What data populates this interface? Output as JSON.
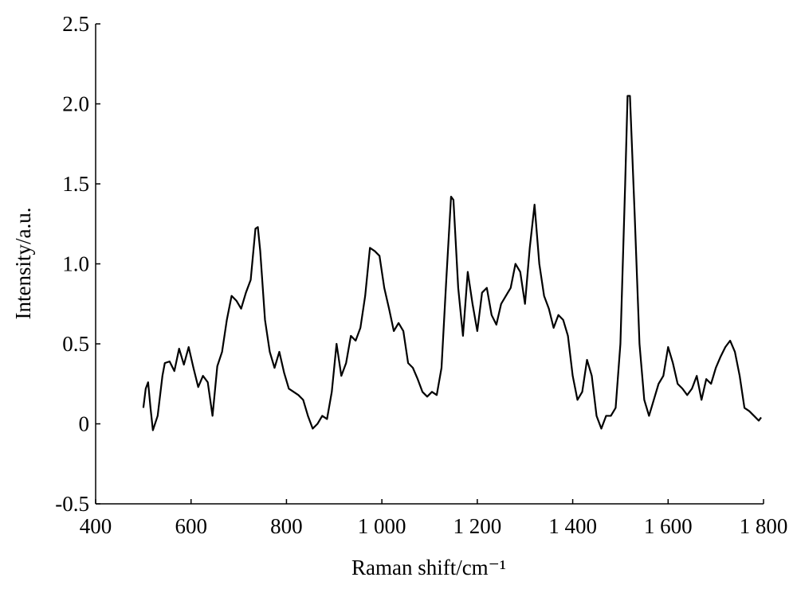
{
  "chart_data": {
    "type": "line",
    "xlabel": "Raman shift/cm⁻¹",
    "ylabel": "Intensity/a.u.",
    "xlim": [
      400,
      1800
    ],
    "ylim": [
      -0.5,
      2.5
    ],
    "xticks": [
      400,
      600,
      800,
      {
        "value": 1000,
        "label": "1 000"
      },
      {
        "value": 1200,
        "label": "1 200"
      },
      {
        "value": 1400,
        "label": "1 400"
      },
      {
        "value": 1600,
        "label": "1 600"
      },
      {
        "value": 1800,
        "label": "1 800"
      }
    ],
    "yticks": [
      -0.5,
      0,
      0.5,
      {
        "value": 1,
        "label": "1.0"
      },
      1.5,
      {
        "value": 2,
        "label": "2.0"
      },
      2.5
    ],
    "grid": false,
    "series": [
      {
        "color": "#000000",
        "x": [
          500,
          505,
          510,
          515,
          520,
          530,
          540,
          545,
          555,
          565,
          575,
          585,
          595,
          605,
          615,
          625,
          635,
          645,
          655,
          665,
          675,
          685,
          695,
          705,
          715,
          725,
          735,
          740,
          745,
          755,
          765,
          775,
          785,
          795,
          805,
          815,
          825,
          835,
          845,
          855,
          865,
          875,
          885,
          895,
          905,
          915,
          925,
          935,
          945,
          955,
          965,
          975,
          985,
          995,
          1005,
          1015,
          1025,
          1035,
          1045,
          1055,
          1065,
          1075,
          1085,
          1095,
          1105,
          1115,
          1125,
          1135,
          1145,
          1150,
          1160,
          1170,
          1180,
          1190,
          1200,
          1210,
          1220,
          1230,
          1240,
          1250,
          1260,
          1270,
          1280,
          1290,
          1300,
          1310,
          1320,
          1330,
          1340,
          1350,
          1360,
          1370,
          1380,
          1390,
          1400,
          1410,
          1420,
          1430,
          1440,
          1450,
          1460,
          1470,
          1480,
          1490,
          1500,
          1510,
          1515,
          1520,
          1530,
          1540,
          1550,
          1560,
          1570,
          1580,
          1590,
          1600,
          1610,
          1620,
          1630,
          1640,
          1650,
          1660,
          1670,
          1680,
          1690,
          1700,
          1710,
          1720,
          1730,
          1740,
          1750,
          1760,
          1770,
          1780,
          1790,
          1795
        ],
        "values": [
          0.1,
          0.22,
          0.26,
          0.1,
          -0.04,
          0.05,
          0.3,
          0.38,
          0.39,
          0.33,
          0.47,
          0.37,
          0.48,
          0.35,
          0.23,
          0.3,
          0.26,
          0.05,
          0.36,
          0.45,
          0.65,
          0.8,
          0.77,
          0.72,
          0.82,
          0.9,
          1.22,
          1.23,
          1.08,
          0.65,
          0.45,
          0.35,
          0.45,
          0.32,
          0.22,
          0.2,
          0.18,
          0.15,
          0.05,
          -0.03,
          0.0,
          0.05,
          0.03,
          0.2,
          0.5,
          0.3,
          0.38,
          0.55,
          0.52,
          0.6,
          0.8,
          1.1,
          1.08,
          1.05,
          0.85,
          0.72,
          0.58,
          0.63,
          0.58,
          0.38,
          0.35,
          0.28,
          0.2,
          0.17,
          0.2,
          0.18,
          0.35,
          0.9,
          1.42,
          1.4,
          0.85,
          0.55,
          0.95,
          0.75,
          0.58,
          0.82,
          0.85,
          0.68,
          0.62,
          0.75,
          0.8,
          0.85,
          1.0,
          0.95,
          0.75,
          1.1,
          1.37,
          1.0,
          0.8,
          0.72,
          0.6,
          0.68,
          0.65,
          0.55,
          0.3,
          0.15,
          0.2,
          0.4,
          0.3,
          0.05,
          -0.03,
          0.05,
          0.05,
          0.1,
          0.5,
          1.5,
          2.05,
          2.05,
          1.3,
          0.5,
          0.15,
          0.05,
          0.15,
          0.25,
          0.3,
          0.48,
          0.38,
          0.25,
          0.22,
          0.18,
          0.22,
          0.3,
          0.15,
          0.28,
          0.25,
          0.35,
          0.42,
          0.48,
          0.52,
          0.45,
          0.3,
          0.1,
          0.08,
          0.05,
          0.02,
          0.04
        ]
      }
    ]
  }
}
